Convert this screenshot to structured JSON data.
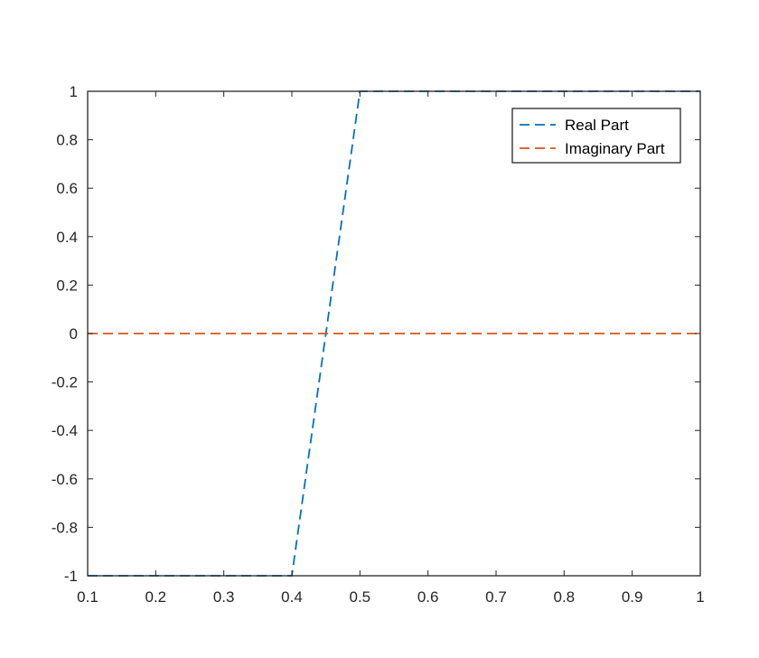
{
  "chart_data": {
    "type": "line",
    "title": "",
    "xlabel": "",
    "ylabel": "",
    "xlim": [
      0.1,
      1
    ],
    "ylim": [
      -1,
      1
    ],
    "xticks": [
      "0.1",
      "0.2",
      "0.3",
      "0.4",
      "0.5",
      "0.6",
      "0.7",
      "0.8",
      "0.9",
      "1"
    ],
    "yticks": [
      "-1",
      "-0.8",
      "-0.6",
      "-0.4",
      "-0.2",
      "0",
      "0.2",
      "0.4",
      "0.6",
      "0.8",
      "1"
    ],
    "grid": false,
    "legend_position": "top-right",
    "series": [
      {
        "name": "Real Part",
        "color": "#0072bd",
        "line_style": "dashed",
        "x": [
          0.1,
          0.4,
          0.5,
          1
        ],
        "y": [
          -1,
          -1,
          1,
          1
        ]
      },
      {
        "name": "Imaginary Part",
        "color": "#d95319",
        "line_style": "dashed",
        "x": [
          0.1,
          1
        ],
        "y": [
          0,
          0
        ]
      }
    ]
  }
}
